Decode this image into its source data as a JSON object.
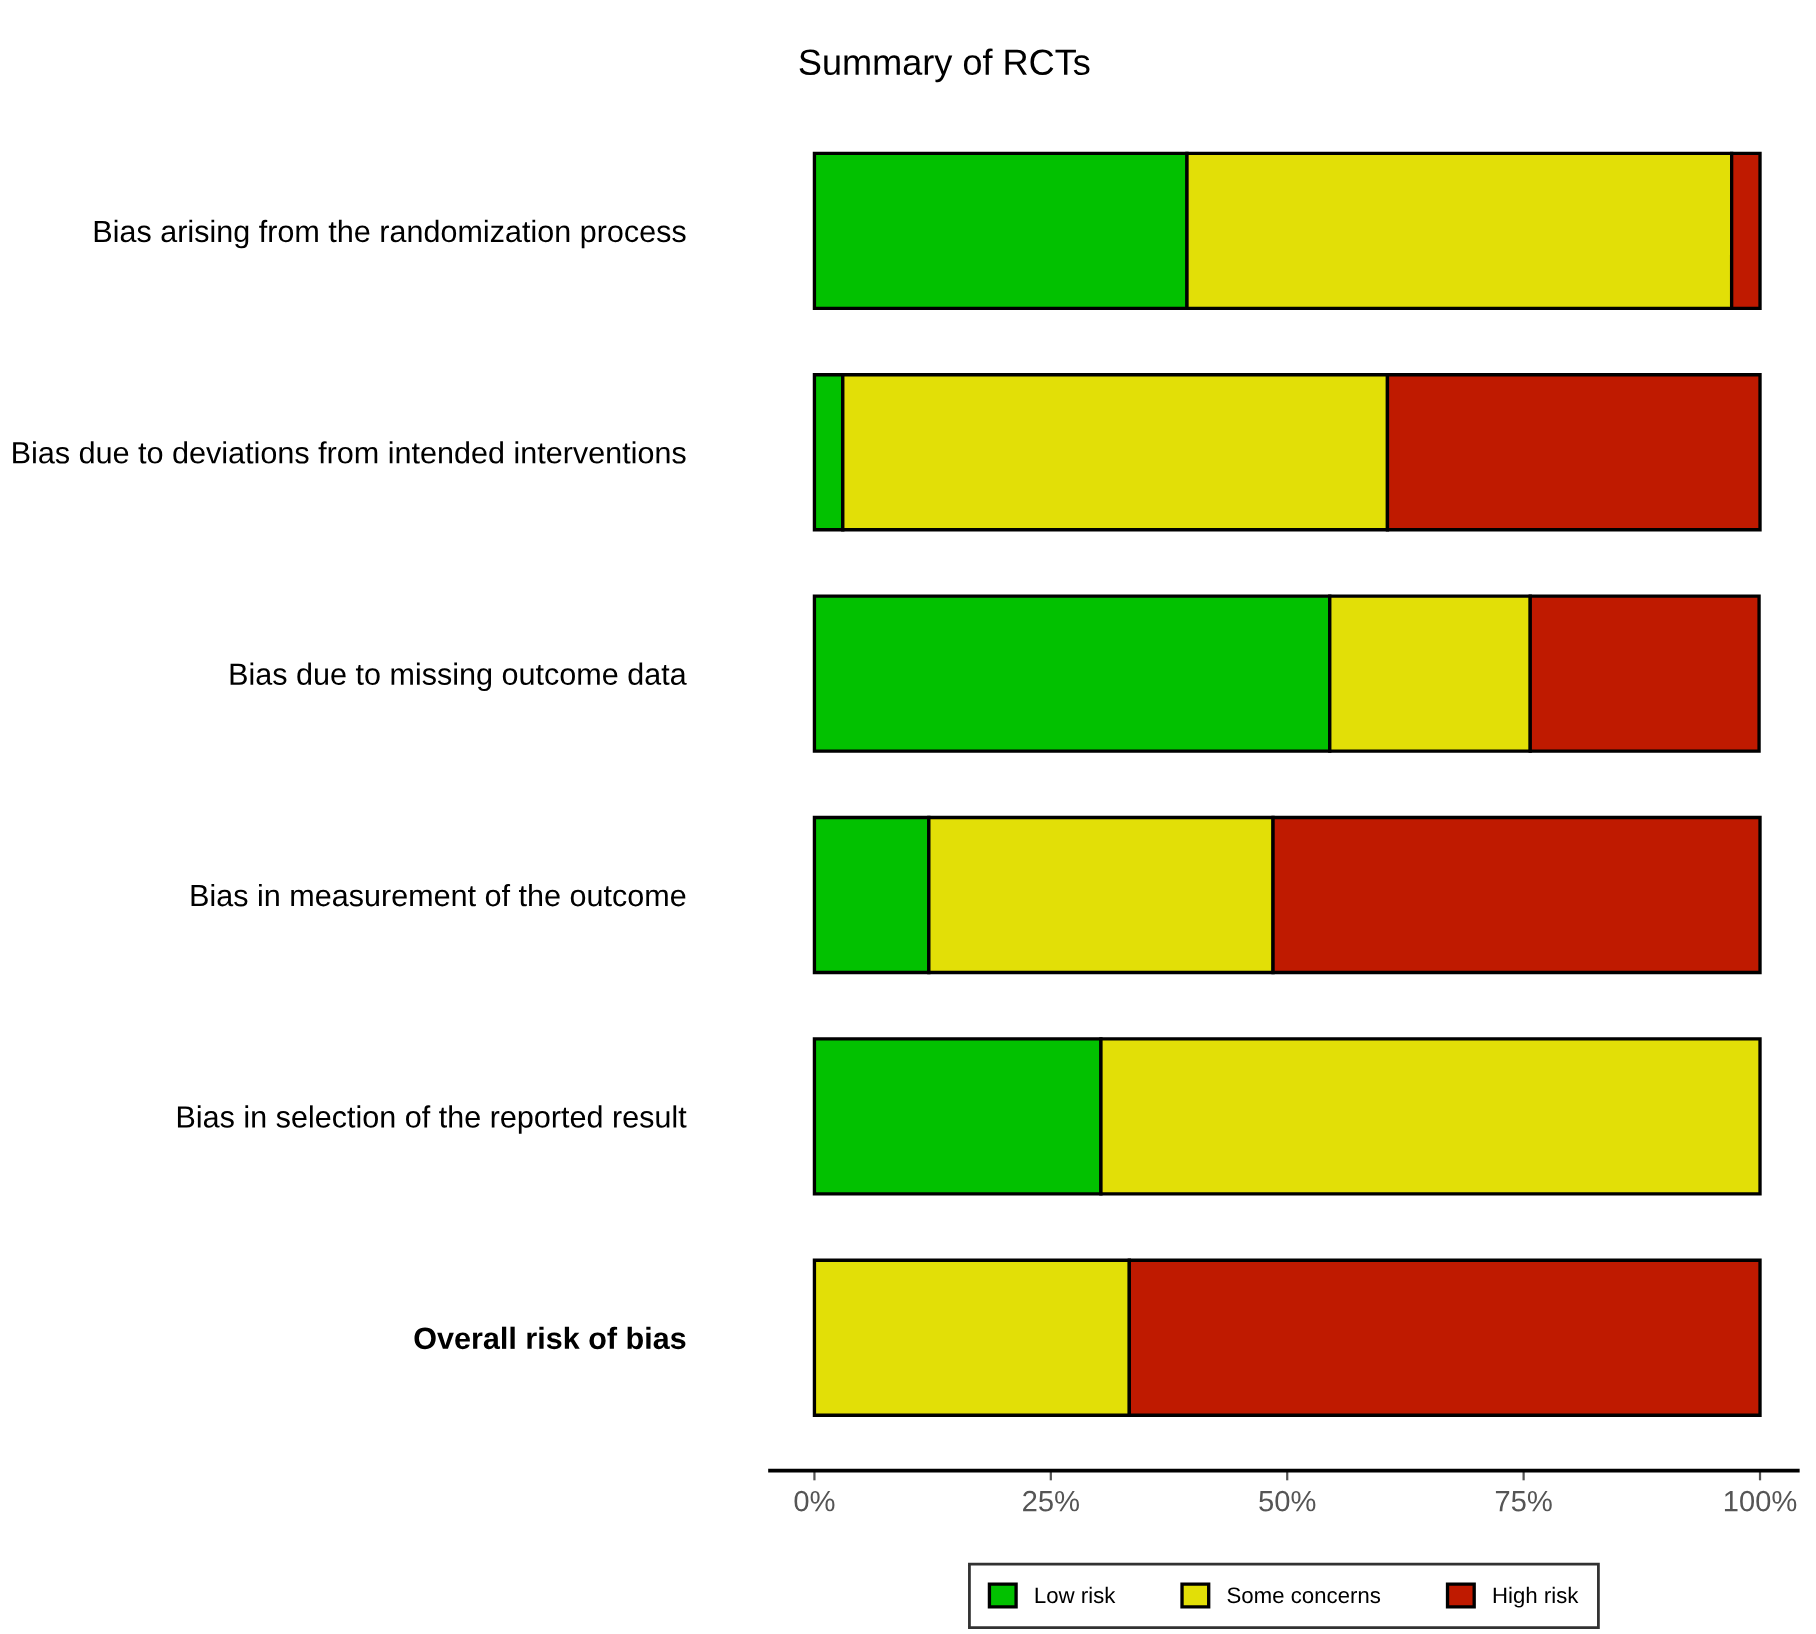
{
  "chart_data": {
    "type": "bar",
    "title": "Summary of RCTs",
    "orientation": "horizontal",
    "stacked": true,
    "categories": [
      "Bias arising from the randomization process",
      "Bias due to deviations from intended interventions",
      "Bias due to missing outcome data",
      "Bias in measurement of the outcome",
      "Bias in selection of the reported result",
      "Overall risk of bias"
    ],
    "series": [
      {
        "name": "Low risk",
        "color": "#02c100",
        "values": [
          39.4,
          3.0,
          54.5,
          12.1,
          30.3,
          null
        ]
      },
      {
        "name": "Some concerns",
        "color": "#e2df07",
        "values": [
          57.6,
          57.6,
          21.2,
          36.4,
          69.7,
          33.3
        ]
      },
      {
        "name": "High risk",
        "color": "#bf1a00",
        "values": [
          3.0,
          39.4,
          24.2,
          51.5,
          null,
          66.7
        ]
      }
    ],
    "xlim": [
      -4.7,
      104
    ],
    "xticks": [
      {
        "value": 0,
        "label": "0%"
      },
      {
        "value": 25,
        "label": "25%"
      },
      {
        "value": 50,
        "label": "50%"
      },
      {
        "value": 75,
        "label": "75%"
      },
      {
        "value": 100,
        "label": "100%"
      }
    ],
    "grid": false,
    "legend": "bottom"
  }
}
